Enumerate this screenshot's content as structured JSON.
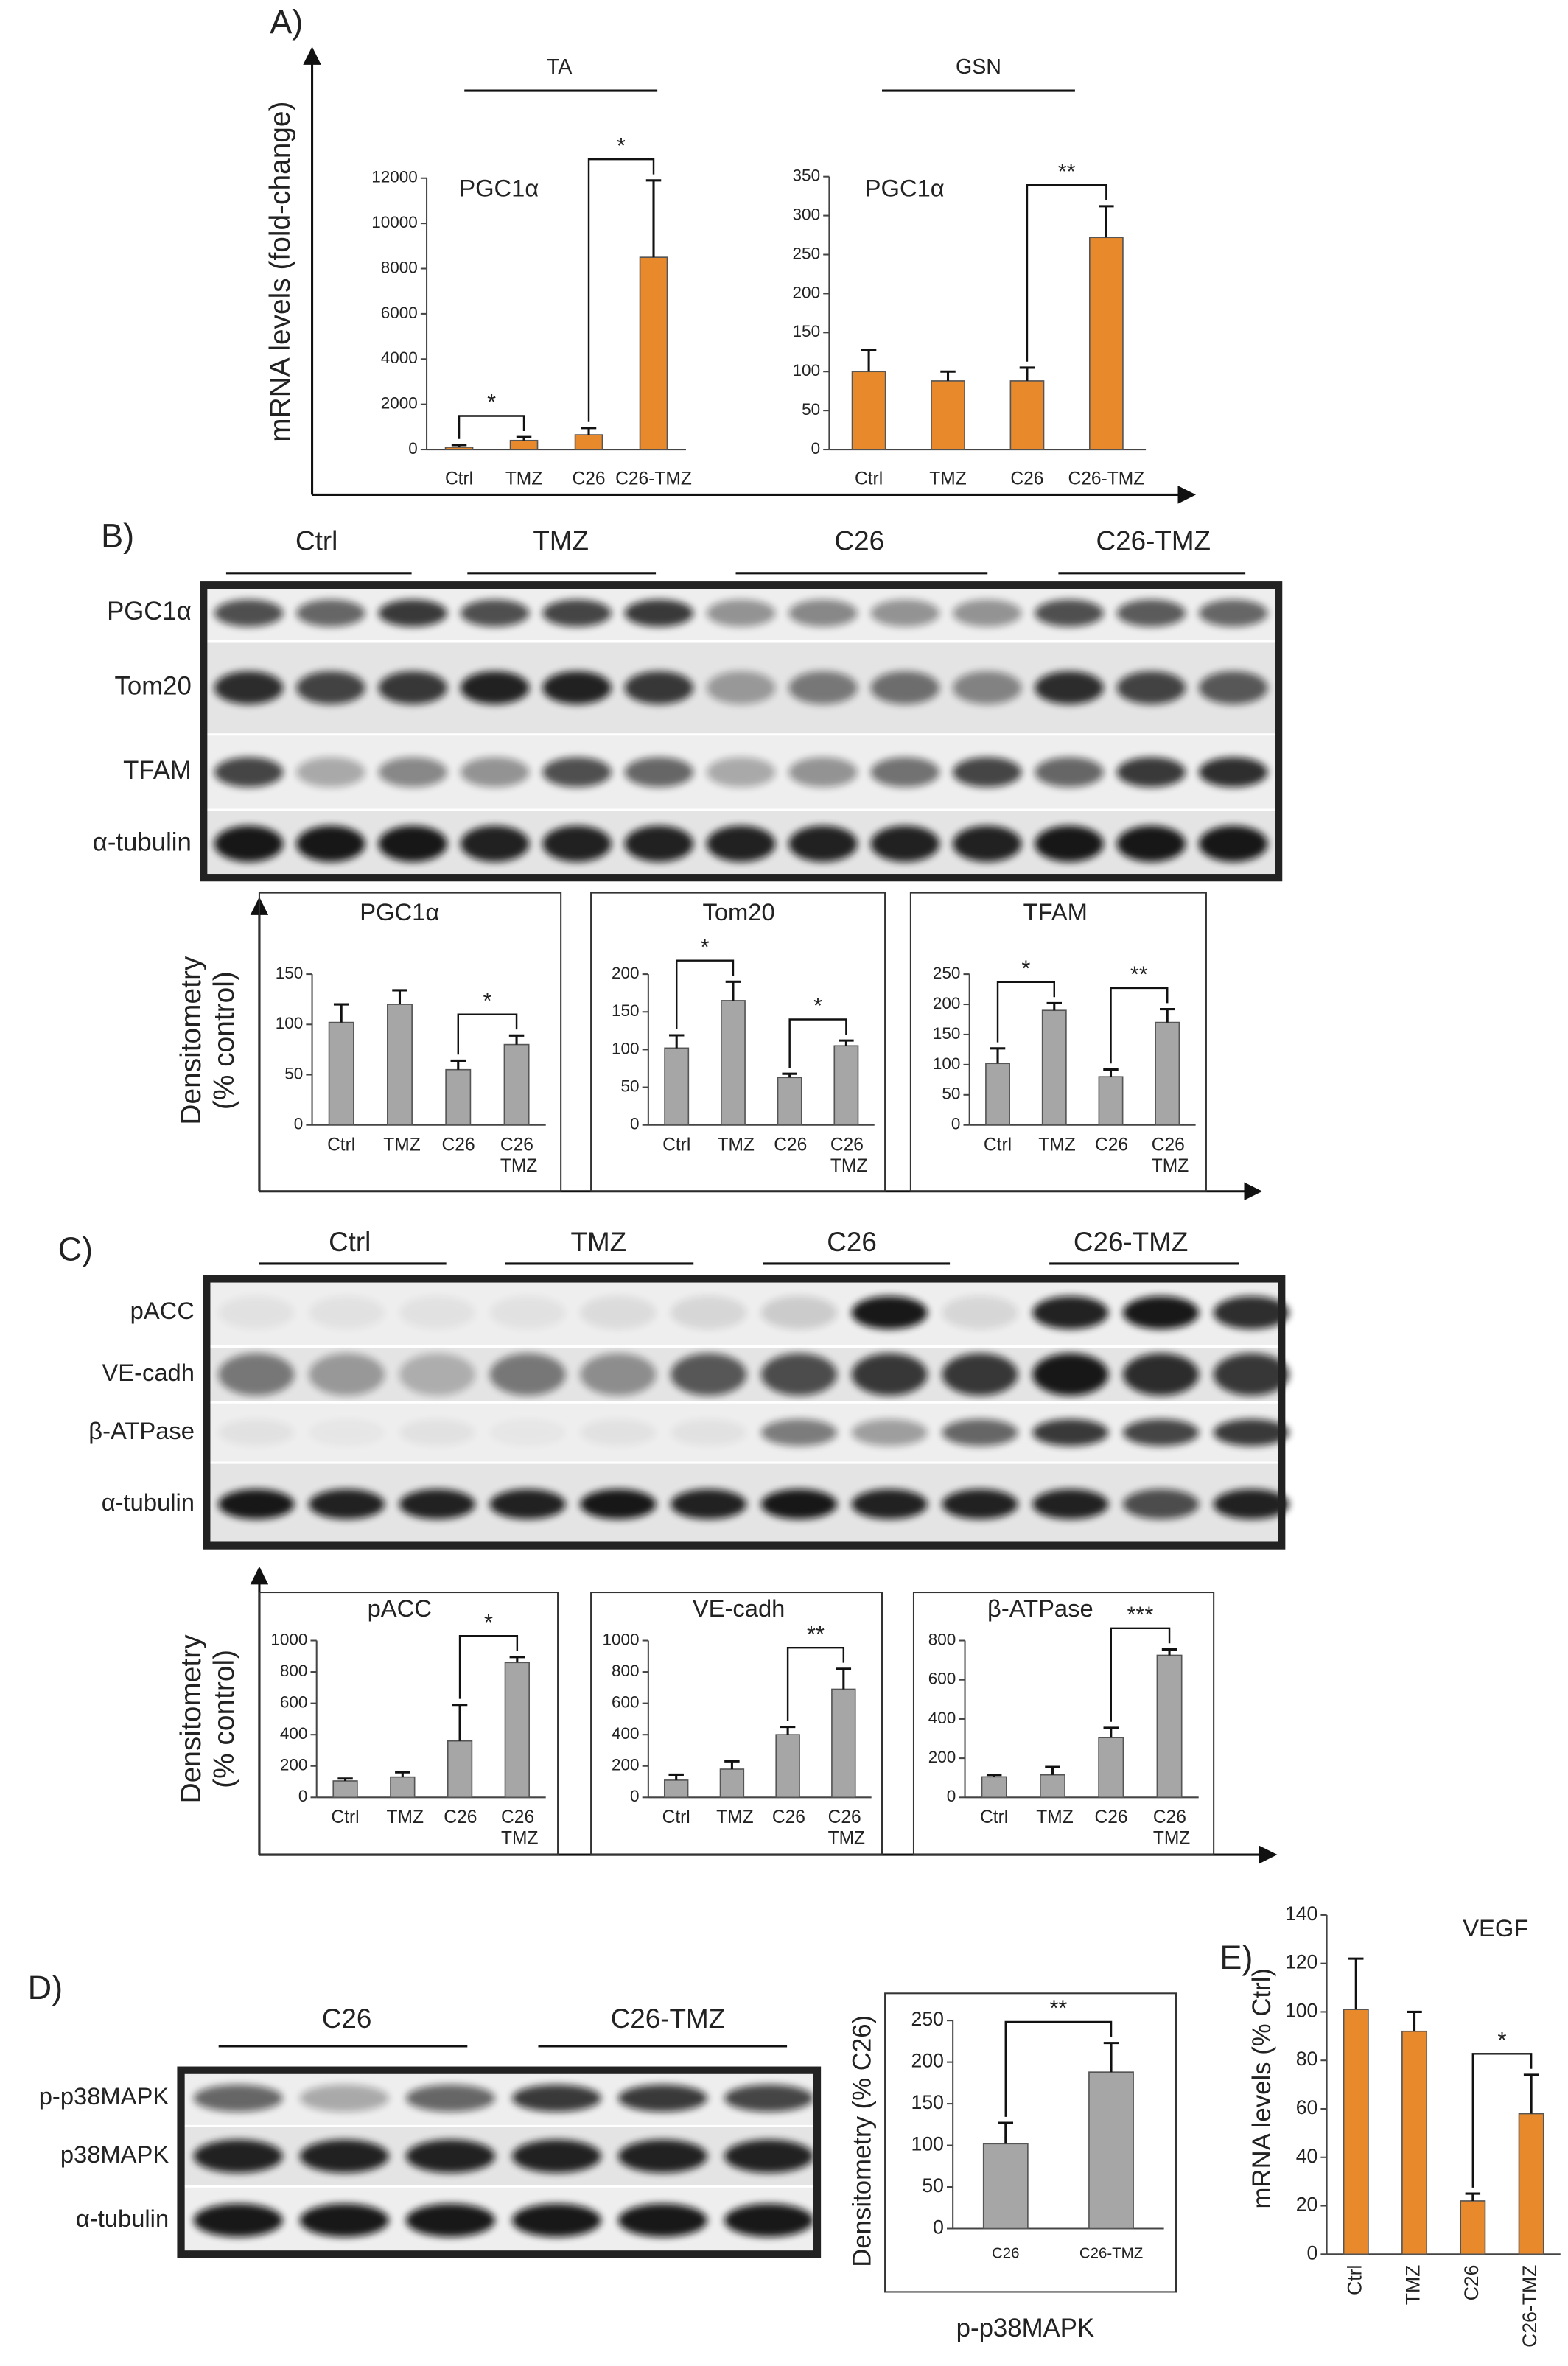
{
  "panels": [
    "A)",
    "B)",
    "C)",
    "D)",
    "E)"
  ],
  "panel_a": {
    "ylabel": "mRNA levels (fold-change)",
    "groups": [
      "TA",
      "GSN"
    ]
  },
  "densitometry_ylabel": [
    "Densitometry",
    "(% control)"
  ],
  "blots": [
    {
      "groups": [
        "Ctrl",
        "TMZ",
        "C26",
        "C26-TMZ"
      ],
      "rows": [
        "PGC1α",
        "Tom20",
        "TFAM",
        "α-tubulin"
      ]
    },
    {
      "groups": [
        "Ctrl",
        "TMZ",
        "C26",
        "C26-TMZ"
      ],
      "rows": [
        "pACC",
        "VE-cadh",
        "β-ATPase",
        "α-tubulin"
      ]
    },
    {
      "groups": [
        "C26",
        "C26-TMZ"
      ],
      "rows": [
        "p-p38MAPK",
        "p38MAPK",
        "α-tubulin"
      ]
    }
  ],
  "chart_data": [
    {
      "type": "bar",
      "title": "PGC1α",
      "categories": [
        "Ctrl",
        "TMZ",
        "C26",
        "C26-TMZ"
      ],
      "values": [
        100,
        400,
        650,
        8500
      ],
      "errors": [
        100,
        150,
        300,
        3400
      ],
      "color": "#e8892b",
      "ylim": [
        0,
        12000
      ],
      "yticks": [
        0,
        2000,
        4000,
        6000,
        8000,
        10000,
        12000
      ],
      "significance": [
        {
          "label": "*",
          "between": [
            "Ctrl",
            "TMZ"
          ]
        },
        {
          "label": "*",
          "between": [
            "C26",
            "C26-TMZ"
          ]
        }
      ]
    },
    {
      "type": "bar",
      "title": "PGC1α",
      "categories": [
        "Ctrl",
        "TMZ",
        "C26",
        "C26-TMZ"
      ],
      "values": [
        100,
        88,
        88,
        272
      ],
      "errors": [
        28,
        12,
        17,
        40
      ],
      "color": "#e8892b",
      "ylim": [
        0,
        350
      ],
      "yticks": [
        0,
        50,
        100,
        150,
        200,
        250,
        300,
        350
      ],
      "significance": [
        {
          "label": "**",
          "between": [
            "C26",
            "C26-TMZ"
          ]
        }
      ]
    },
    {
      "type": "bar",
      "title": "PGC1α",
      "categories": [
        "Ctrl",
        "TMZ",
        "C26",
        "C26 TMZ"
      ],
      "values": [
        102,
        120,
        55,
        80
      ],
      "errors": [
        18,
        14,
        9,
        9
      ],
      "color": "#a6a6a6",
      "ylim": [
        0,
        150
      ],
      "yticks": [
        0,
        50,
        100,
        150
      ],
      "significance": [
        {
          "label": "*",
          "between": [
            "C26",
            "C26 TMZ"
          ]
        }
      ]
    },
    {
      "type": "bar",
      "title": "Tom20",
      "categories": [
        "Ctrl",
        "TMZ",
        "C26",
        "C26 TMZ"
      ],
      "values": [
        102,
        165,
        63,
        105
      ],
      "errors": [
        17,
        25,
        5,
        7
      ],
      "color": "#a6a6a6",
      "ylim": [
        0,
        200
      ],
      "yticks": [
        0,
        50,
        100,
        150,
        200
      ],
      "significance": [
        {
          "label": "*",
          "between": [
            "Ctrl",
            "TMZ"
          ]
        },
        {
          "label": "*",
          "between": [
            "C26",
            "C26 TMZ"
          ]
        }
      ]
    },
    {
      "type": "bar",
      "title": "TFAM",
      "categories": [
        "Ctrl",
        "TMZ",
        "C26",
        "C26 TMZ"
      ],
      "values": [
        102,
        190,
        80,
        170
      ],
      "errors": [
        25,
        12,
        12,
        22
      ],
      "color": "#a6a6a6",
      "ylim": [
        0,
        250
      ],
      "yticks": [
        0,
        50,
        100,
        150,
        200,
        250
      ],
      "significance": [
        {
          "label": "*",
          "between": [
            "Ctrl",
            "TMZ"
          ]
        },
        {
          "label": "**",
          "between": [
            "C26",
            "C26 TMZ"
          ]
        }
      ]
    },
    {
      "type": "bar",
      "title": "pACC",
      "categories": [
        "Ctrl",
        "TMZ",
        "C26",
        "C26 TMZ"
      ],
      "values": [
        105,
        130,
        360,
        860
      ],
      "errors": [
        15,
        30,
        230,
        35
      ],
      "color": "#a6a6a6",
      "ylim": [
        0,
        1000
      ],
      "yticks": [
        0,
        200,
        400,
        600,
        800,
        1000
      ],
      "significance": [
        {
          "label": "*",
          "between": [
            "C26",
            "C26 TMZ"
          ]
        }
      ]
    },
    {
      "type": "bar",
      "title": "VE-cadh",
      "categories": [
        "Ctrl",
        "TMZ",
        "C26",
        "C26 TMZ"
      ],
      "values": [
        110,
        180,
        400,
        690
      ],
      "errors": [
        35,
        50,
        50,
        130
      ],
      "color": "#a6a6a6",
      "ylim": [
        0,
        1000
      ],
      "yticks": [
        0,
        200,
        400,
        600,
        800,
        1000
      ],
      "significance": [
        {
          "label": "**",
          "between": [
            "C26",
            "C26 TMZ"
          ]
        }
      ]
    },
    {
      "type": "bar",
      "title": "β-ATPase",
      "categories": [
        "Ctrl",
        "TMZ",
        "C26",
        "C26 TMZ"
      ],
      "values": [
        105,
        115,
        305,
        725
      ],
      "errors": [
        10,
        40,
        50,
        30
      ],
      "color": "#a6a6a6",
      "ylim": [
        0,
        800
      ],
      "yticks": [
        0,
        200,
        400,
        600,
        800
      ],
      "significance": [
        {
          "label": "***",
          "between": [
            "C26",
            "C26 TMZ"
          ]
        }
      ]
    },
    {
      "type": "bar",
      "ylabel": "Densitometry (% C26)",
      "xlabel": "p-p38MAPK",
      "categories": [
        "C26",
        "C26-TMZ"
      ],
      "values": [
        102,
        188
      ],
      "errors": [
        25,
        35
      ],
      "color": "#a6a6a6",
      "ylim": [
        0,
        250
      ],
      "yticks": [
        0,
        50,
        100,
        150,
        200,
        250
      ],
      "significance": [
        {
          "label": "**",
          "between": [
            "C26",
            "C26-TMZ"
          ]
        }
      ]
    },
    {
      "type": "bar",
      "title": "VEGF",
      "ylabel": "mRNA levels (% Ctrl)",
      "categories": [
        "Ctrl",
        "TMZ",
        "C26",
        "C26-TMZ"
      ],
      "values": [
        101,
        92,
        22,
        58
      ],
      "errors": [
        21,
        8,
        3,
        16
      ],
      "color": "#e8892b",
      "ylim": [
        0,
        140
      ],
      "yticks": [
        0,
        20,
        40,
        60,
        80,
        100,
        120,
        140
      ],
      "significance": [
        {
          "label": "*",
          "between": [
            "C26",
            "C26-TMZ"
          ]
        }
      ]
    }
  ]
}
